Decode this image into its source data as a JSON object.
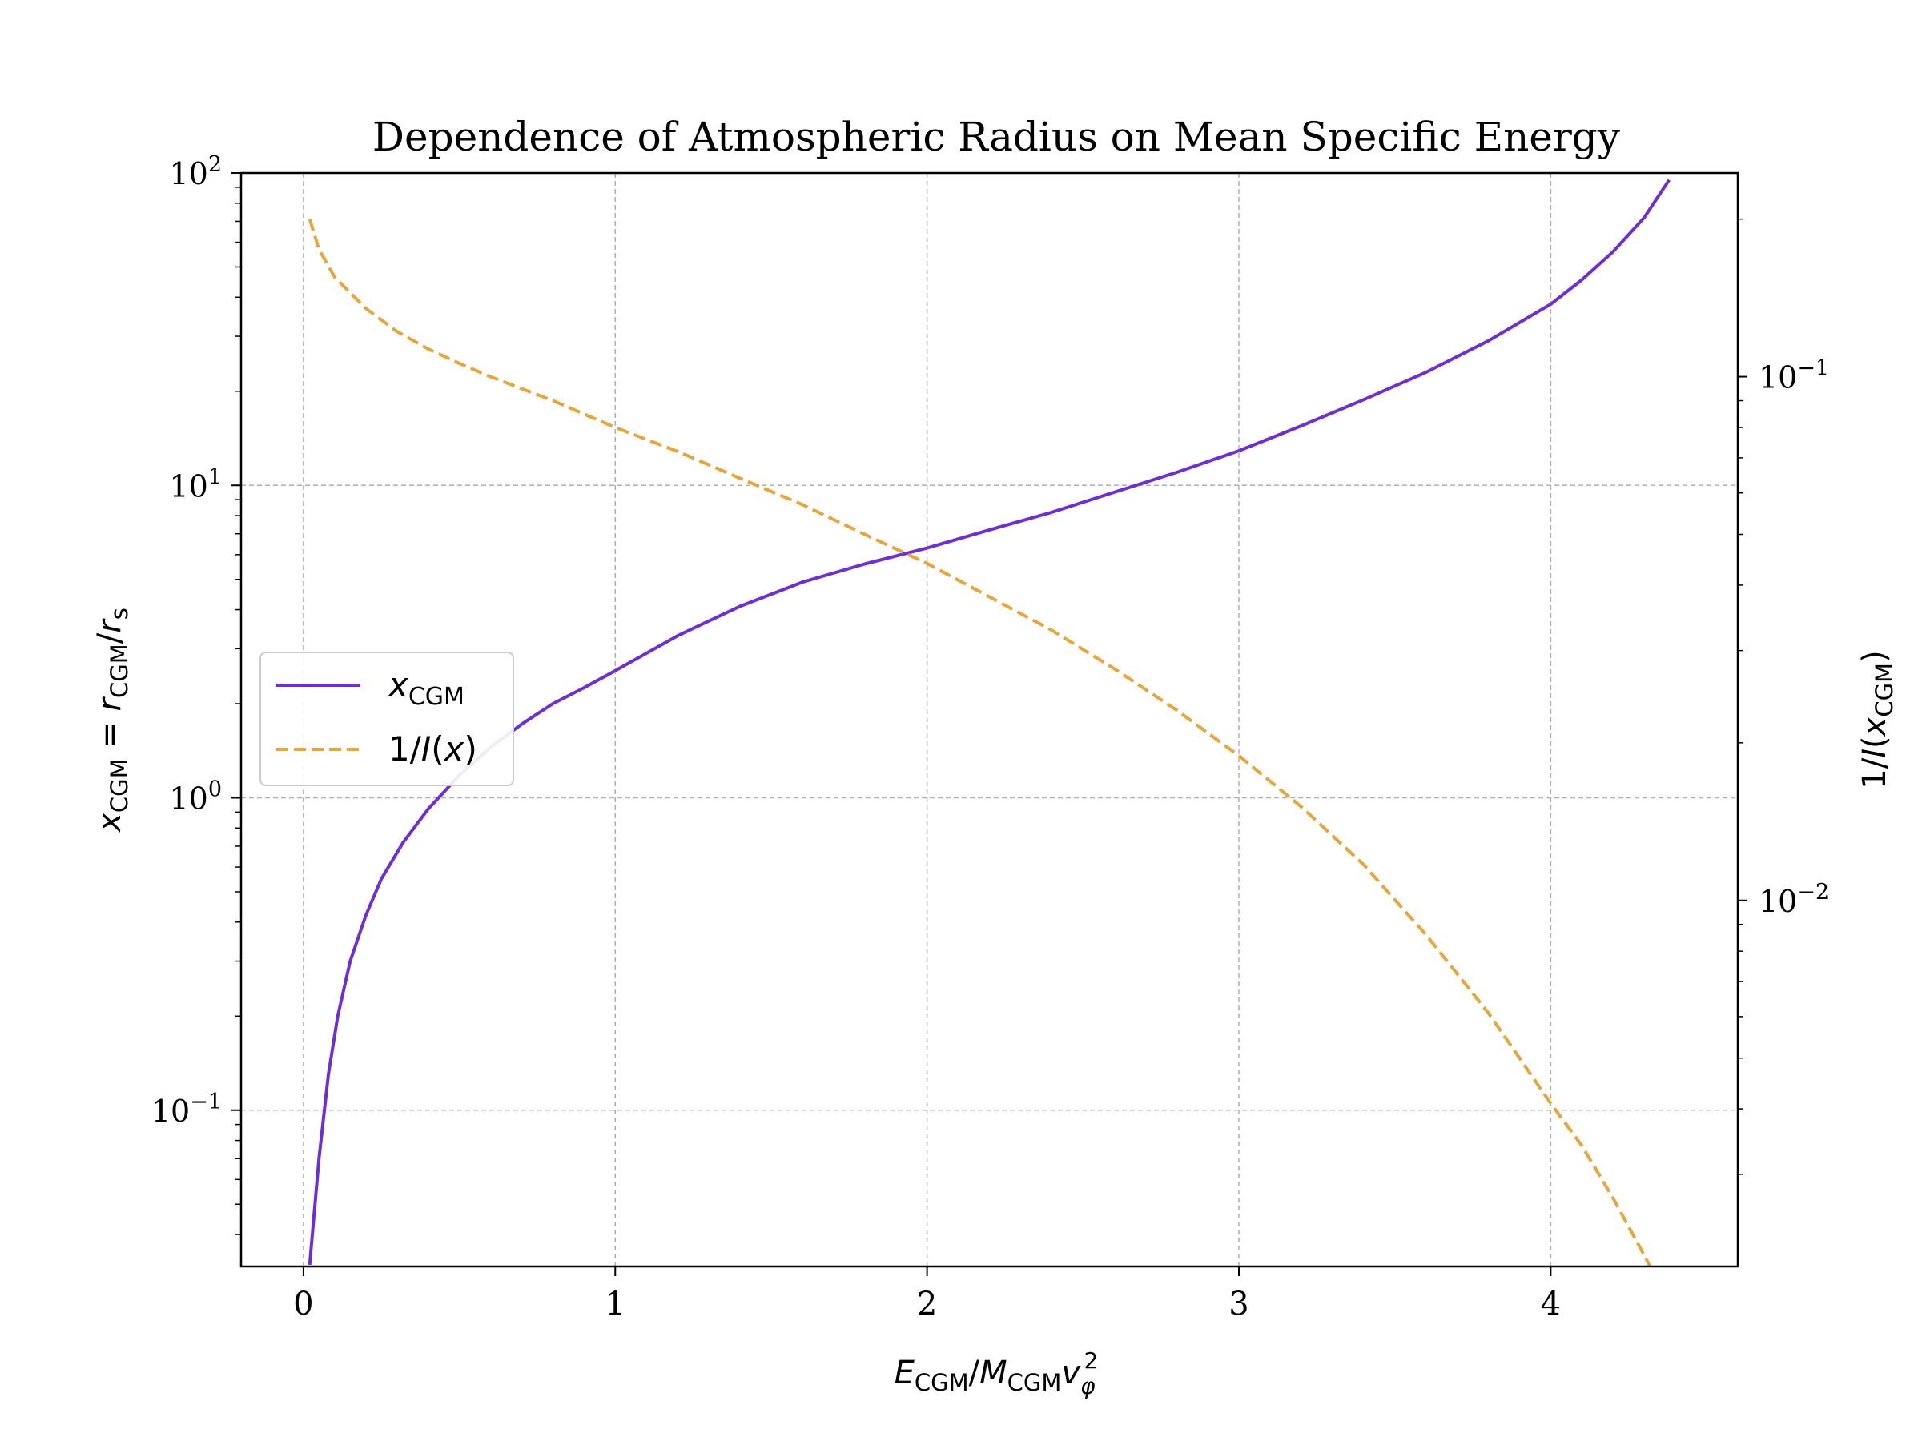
{
  "chart_data": {
    "type": "line",
    "title": "Dependence of Atmospheric Radius on Mean Specific Energy",
    "xlabel": "E_CGM / M_CGM v_φ^2",
    "ylabel_left": "x_CGM = r_CGM / r_s",
    "ylabel_right": "1/I(x_CGM)",
    "xlim": [
      -0.2,
      4.6
    ],
    "ylim_left": [
      0.0316,
      100
    ],
    "ylim_right": [
      0.002,
      0.245
    ],
    "yscale_left": "log",
    "yscale_right": "log",
    "grid": true,
    "legend_position": "center-left",
    "x_ticks": [
      0,
      1,
      2,
      3,
      4
    ],
    "y_left_ticks": [
      {
        "base": "10",
        "exp": "−1",
        "value": 0.1
      },
      {
        "base": "10",
        "exp": "0",
        "value": 1
      },
      {
        "base": "10",
        "exp": "1",
        "value": 10
      },
      {
        "base": "10",
        "exp": "2",
        "value": 100
      }
    ],
    "y_right_ticks": [
      {
        "base": "10",
        "exp": "−2",
        "value": 0.01
      },
      {
        "base": "10",
        "exp": "−1",
        "value": 0.1
      }
    ],
    "series": [
      {
        "name": "x_CGM",
        "axis": "left",
        "color": "#6d2ed8",
        "dash": "solid",
        "x": [
          0.02,
          0.05,
          0.08,
          0.11,
          0.15,
          0.2,
          0.25,
          0.32,
          0.4,
          0.5,
          0.6,
          0.7,
          0.8,
          0.9,
          1.0,
          1.2,
          1.4,
          1.6,
          1.8,
          2.0,
          2.2,
          2.4,
          2.6,
          2.8,
          3.0,
          3.2,
          3.4,
          3.6,
          3.8,
          4.0,
          4.1,
          4.2,
          4.3,
          4.38
        ],
        "y": [
          0.032,
          0.07,
          0.13,
          0.2,
          0.3,
          0.42,
          0.55,
          0.72,
          0.92,
          1.18,
          1.45,
          1.72,
          2.0,
          2.25,
          2.55,
          3.3,
          4.1,
          4.9,
          5.6,
          6.3,
          7.2,
          8.2,
          9.5,
          11.0,
          12.9,
          15.5,
          18.8,
          23.0,
          29.0,
          38.0,
          45.5,
          56.0,
          72.0,
          95.0
        ]
      },
      {
        "name": "1/I(x)",
        "axis": "right",
        "color": "#e8a63a",
        "dash": "dashed",
        "x": [
          0.02,
          0.05,
          0.1,
          0.2,
          0.3,
          0.4,
          0.5,
          0.6,
          0.8,
          1.0,
          1.2,
          1.4,
          1.6,
          1.8,
          2.0,
          2.2,
          2.4,
          2.6,
          2.8,
          3.0,
          3.2,
          3.4,
          3.6,
          3.8,
          4.0,
          4.1,
          4.2,
          4.3,
          4.38
        ],
        "y": [
          0.2,
          0.175,
          0.155,
          0.135,
          0.122,
          0.113,
          0.106,
          0.1,
          0.09,
          0.08,
          0.072,
          0.064,
          0.057,
          0.05,
          0.044,
          0.038,
          0.0328,
          0.0277,
          0.0231,
          0.0189,
          0.0151,
          0.0117,
          0.0086,
          0.0061,
          0.0041,
          0.0034,
          0.0027,
          0.0021,
          0.0017
        ]
      }
    ],
    "legend": [
      {
        "label": "x_CGM",
        "color": "#6d2ed8",
        "dash": "solid"
      },
      {
        "label": "1/I(x)",
        "color": "#e8a63a",
        "dash": "dashed"
      }
    ]
  }
}
